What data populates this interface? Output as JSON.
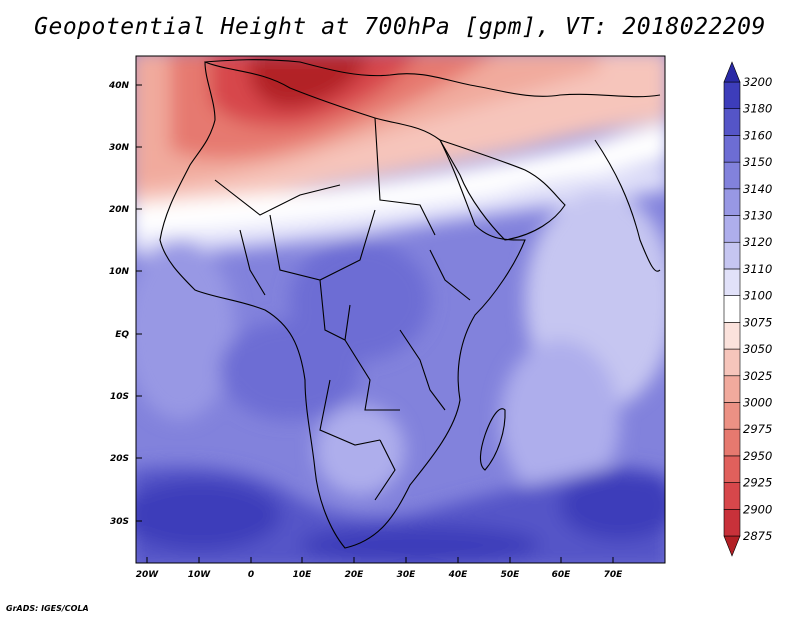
{
  "title": "Geopotential Height at 700hPa [gpm], VT: 2018022209",
  "credit": "GrADS: IGES/COLA",
  "map": {
    "lon_ticks": [
      "20W",
      "10W",
      "0",
      "10E",
      "20E",
      "30E",
      "40E",
      "50E",
      "60E",
      "70E"
    ],
    "lat_ticks": [
      "40N",
      "30N",
      "20N",
      "10N",
      "EQ",
      "10S",
      "20S",
      "30S"
    ]
  },
  "colorbar": {
    "levels": [
      "2875",
      "2900",
      "2925",
      "2950",
      "2975",
      "3000",
      "3025",
      "3050",
      "3075",
      "3100",
      "3110",
      "3120",
      "3130",
      "3140",
      "3150",
      "3160",
      "3180",
      "3200"
    ],
    "colors": [
      "#b22025",
      "#c8313a",
      "#d7474b",
      "#e0605c",
      "#e6796f",
      "#ec9184",
      "#f1aa9d",
      "#f6c5bb",
      "#fbe2dc",
      "#ffffff",
      "#e1e1f9",
      "#c6c6f1",
      "#aeaeec",
      "#9898e4",
      "#8282dc",
      "#6d6dd4",
      "#5555c7",
      "#3d3dba",
      "#2a2aa6"
    ]
  }
}
